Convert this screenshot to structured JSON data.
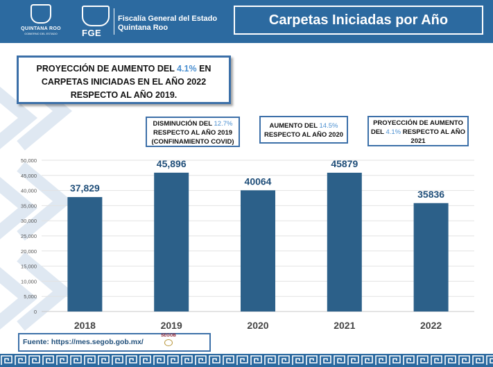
{
  "header": {
    "logo_state_text": "QUINTANA ROO",
    "logo_state_subtext": "GOBIERNO DEL ESTADO",
    "logo_fge_text": "FGE",
    "fiscalia_line1": "Fiscalía General del Estado",
    "fiscalia_line2": "Quintana Roo",
    "slide_title": "Carpetas Iniciadas por Año"
  },
  "main_note": {
    "line1_prefix": "PROYECCIÓN DE AUMENTO DEL ",
    "line1_pct": "4.1%",
    "line1_suffix": " EN",
    "line2": "CARPETAS INICIADAS EN EL AÑO  2022",
    "line3": "RESPECTO AL AÑO 2019."
  },
  "notes": [
    {
      "prefix": "DISMINUCIÓN DEL ",
      "pct": "12.7%",
      "rest1": "RESPECTO  AL AÑO 2019",
      "rest2": "(CONFINAMIENTO COVID)"
    },
    {
      "prefix": "AUMENTO DEL ",
      "pct": "14.5%",
      "rest1": "RESPECTO  AL AÑO 2020",
      "rest2": ""
    },
    {
      "prefix": "PROYECCIÓN DE AUMENTO",
      "mid": "DEL ",
      "pct": "4.1%",
      "rest1": " RESPECTO AL AÑO",
      "rest2": "2021"
    }
  ],
  "chart_data": {
    "type": "bar",
    "categories": [
      "2018",
      "2019",
      "2020",
      "2021",
      "2022"
    ],
    "values": [
      37829,
      45896,
      40064,
      45879,
      35836
    ],
    "data_labels": [
      "37,829",
      "45,896",
      "40064",
      "45879",
      "35836"
    ],
    "ylim": [
      0,
      50000
    ],
    "yticks": [
      "0",
      "5,000",
      "10,000",
      "15,000",
      "20,000",
      "25,000",
      "30,000",
      "35,000",
      "40,000",
      "45,000",
      "50,000"
    ],
    "ytick_values": [
      0,
      5000,
      10000,
      15000,
      20000,
      25000,
      30000,
      35000,
      40000,
      45000,
      50000
    ],
    "grid": true,
    "bar_color": "#2c6089",
    "label_color": "#1f4e79"
  },
  "source": {
    "text": "Fuente: https://mes.segob.gob.mx/",
    "segob_logo": "SEGOB"
  },
  "colors": {
    "header_blue": "#2c6aa0",
    "highlight": "#4a8fd0"
  }
}
